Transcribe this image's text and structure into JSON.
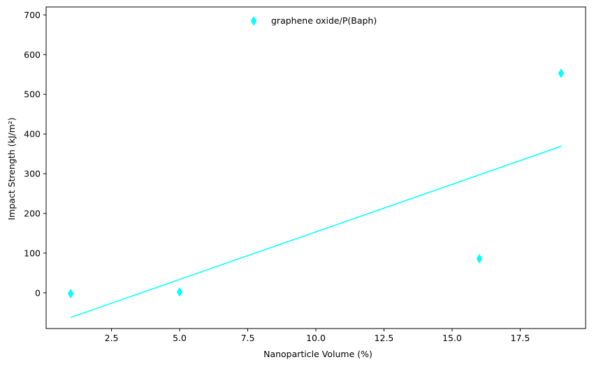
{
  "chart_data": {
    "type": "scatter",
    "title": "",
    "xlabel": "Nanoparticle Volume (%)",
    "ylabel": "Impact Strength (kJ/m²)",
    "xlim": [
      0.1,
      19.9
    ],
    "ylim": [
      -90,
      720
    ],
    "x_ticks": [
      2.5,
      5.0,
      7.5,
      10.0,
      12.5,
      15.0,
      17.5
    ],
    "x_tick_labels": [
      "2.5",
      "5.0",
      "7.5",
      "10.0",
      "12.5",
      "15.0",
      "17.5"
    ],
    "y_ticks": [
      0,
      100,
      200,
      300,
      400,
      500,
      600,
      700
    ],
    "y_tick_labels": [
      "0",
      "100",
      "200",
      "300",
      "400",
      "500",
      "600",
      "700"
    ],
    "grid": false,
    "legend_position": "top-center",
    "series": [
      {
        "name": "graphene oxide/P(Baph)",
        "color": "#00ffff",
        "marker": "thin-diamond",
        "x": [
          1,
          5,
          16,
          19
        ],
        "y": [
          -2,
          2,
          86,
          553
        ]
      }
    ],
    "trend_line": {
      "color": "#00ffff",
      "x": [
        1,
        19
      ],
      "y": [
        -62,
        369
      ]
    }
  }
}
